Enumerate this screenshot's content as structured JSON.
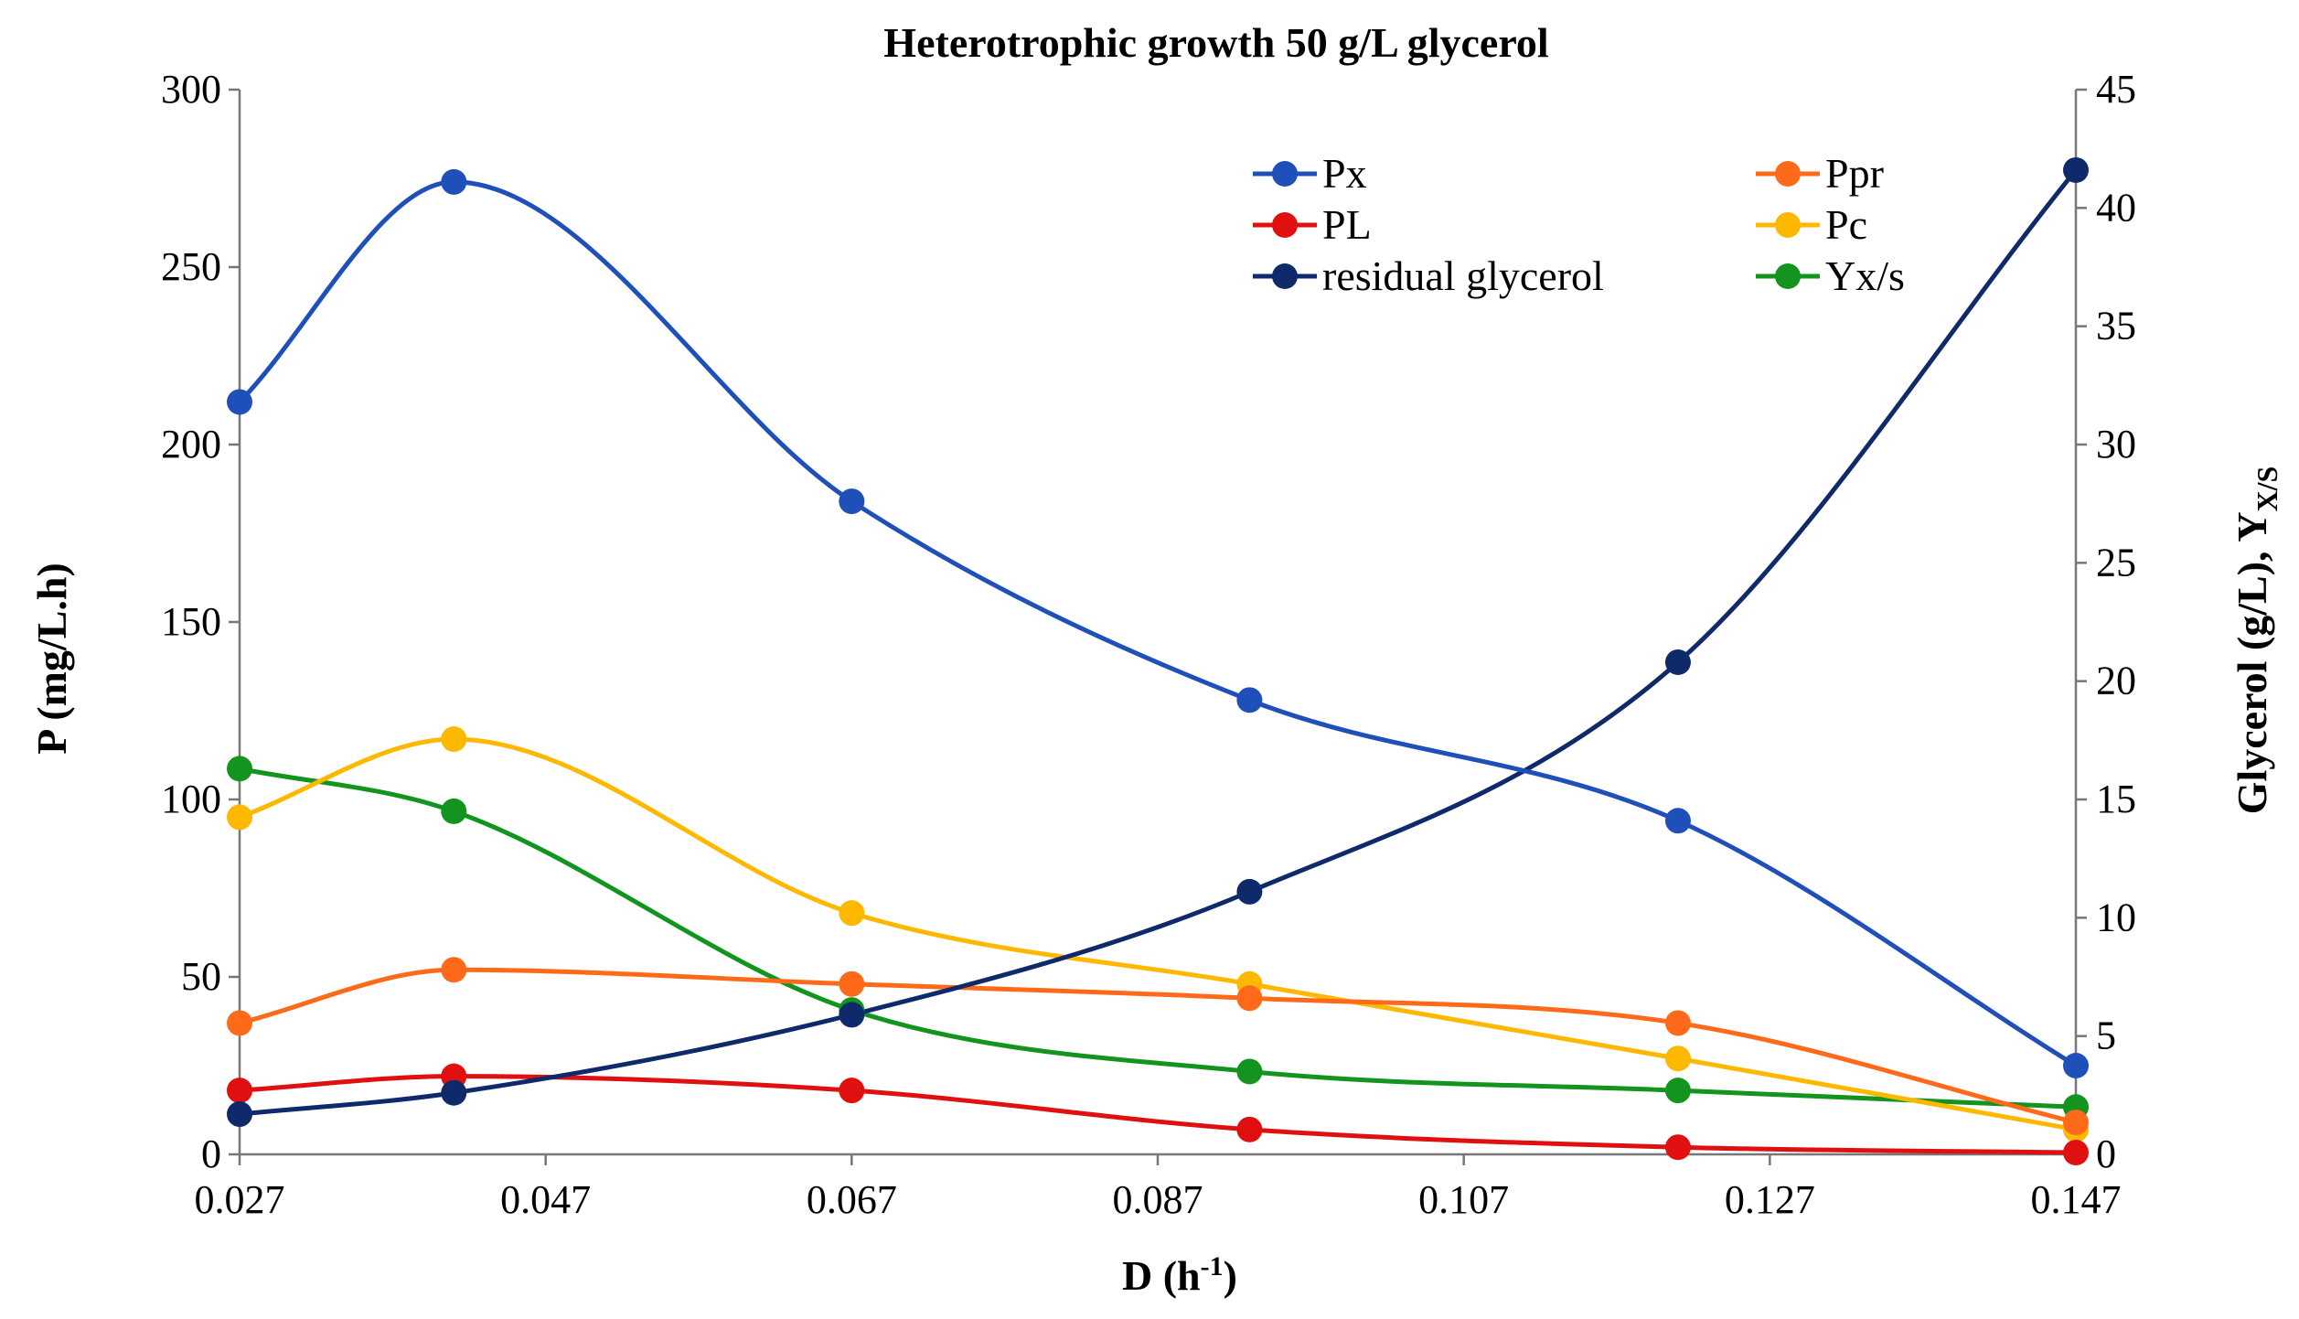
{
  "chart_data": {
    "type": "line",
    "title": "Heterotrophic growth 50 g/L glycerol",
    "xlabel": "D (h",
    "xlabel_sup": "-1",
    "xlabel_close": ")",
    "ylabel": "P (mg/L.h)",
    "y2label": "Glycerol (g/L), Y",
    "y2label_sub": "X/S",
    "x": [
      0.027,
      0.041,
      0.067,
      0.093,
      0.121,
      0.147
    ],
    "xlim": [
      0.027,
      0.147
    ],
    "xticks": [
      "0.027",
      "0.047",
      "0.067",
      "0.087",
      "0.107",
      "0.127",
      "0.147"
    ],
    "ylim": [
      0,
      300
    ],
    "yticks": [
      "0",
      "50",
      "100",
      "150",
      "200",
      "250",
      "300"
    ],
    "y2lim": [
      0,
      45
    ],
    "y2ticks": [
      "0",
      "5",
      "10",
      "15",
      "20",
      "25",
      "30",
      "35",
      "40",
      "45"
    ],
    "grid": false,
    "legend_position": "top-right",
    "series": [
      {
        "name": "Px",
        "axis": "left",
        "color": "#1F4FB8",
        "values": [
          212,
          274,
          184,
          128,
          94,
          25
        ]
      },
      {
        "name": "Ppr",
        "axis": "left",
        "color": "#FF6A1A",
        "values": [
          37,
          52,
          48,
          44,
          37,
          9
        ]
      },
      {
        "name": "PL",
        "axis": "left",
        "color": "#E01010",
        "values": [
          18,
          22,
          18,
          7,
          2,
          0.5
        ]
      },
      {
        "name": "Pc",
        "axis": "left",
        "color": "#FFB800",
        "values": [
          95,
          117,
          68,
          48,
          27,
          7
        ]
      },
      {
        "name": "residual glycerol",
        "axis": "right",
        "color": "#0F2A6B",
        "values": [
          1.7,
          2.6,
          5.9,
          11.1,
          20.8,
          41.6
        ]
      },
      {
        "name": "Yx/s",
        "axis": "right",
        "color": "#12941E",
        "values": [
          16.3,
          14.5,
          6.1,
          3.5,
          2.7,
          2.0
        ]
      }
    ]
  }
}
